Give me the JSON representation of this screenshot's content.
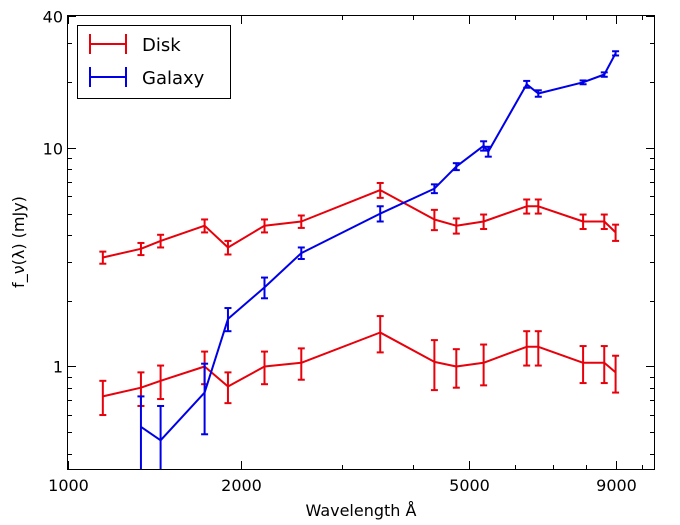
{
  "chart_data": {
    "type": "line",
    "xlabel": "Wavelength Å",
    "ylabel": "f_ν(λ) (mJy)",
    "xscale": "log",
    "yscale": "log",
    "xlim": [
      1000,
      10500
    ],
    "ylim": [
      0.34,
      40
    ],
    "x_ticks": [
      {
        "value": 1000,
        "label": "1000"
      },
      {
        "value": 2000,
        "label": "2000"
      },
      {
        "value": 5000,
        "label": "5000"
      },
      {
        "value": 9000,
        "label": "9000"
      }
    ],
    "y_ticks": [
      {
        "value": 1,
        "label": "1"
      },
      {
        "value": 10,
        "label": "10"
      },
      {
        "value": 40,
        "label": "40"
      }
    ],
    "legend_position": "top-left",
    "grid": false,
    "series": [
      {
        "name": "Disk",
        "color": "#e8000b",
        "segments": [
          [
            {
              "x": 1150,
              "y": 3.15,
              "err": 0.2
            },
            {
              "x": 1340,
              "y": 3.45,
              "err": 0.22
            },
            {
              "x": 1450,
              "y": 3.75,
              "err": 0.25
            },
            {
              "x": 1730,
              "y": 4.4,
              "err": 0.3
            },
            {
              "x": 1900,
              "y": 3.5,
              "err": 0.25
            },
            {
              "x": 2200,
              "y": 4.4,
              "err": 0.3
            },
            {
              "x": 2550,
              "y": 4.6,
              "err": 0.3
            },
            {
              "x": 3500,
              "y": 6.4,
              "err": 0.5
            },
            {
              "x": 4350,
              "y": 4.7,
              "err": 0.5
            },
            {
              "x": 4750,
              "y": 4.4,
              "err": 0.35
            },
            {
              "x": 5300,
              "y": 4.6,
              "err": 0.35
            },
            {
              "x": 6300,
              "y": 5.4,
              "err": 0.4
            },
            {
              "x": 6600,
              "y": 5.4,
              "err": 0.4
            },
            {
              "x": 7900,
              "y": 4.6,
              "err": 0.35
            },
            {
              "x": 8600,
              "y": 4.6,
              "err": 0.35
            },
            {
              "x": 9000,
              "y": 4.1,
              "err": 0.35
            }
          ],
          [
            {
              "x": 1150,
              "y": 0.73,
              "err": 0.13
            },
            {
              "x": 1340,
              "y": 0.8,
              "err": 0.14
            },
            {
              "x": 1450,
              "y": 0.86,
              "err": 0.15
            },
            {
              "x": 1730,
              "y": 1.0,
              "err": 0.17
            },
            {
              "x": 1900,
              "y": 0.81,
              "err": 0.13
            },
            {
              "x": 2200,
              "y": 1.0,
              "err": 0.17
            },
            {
              "x": 2550,
              "y": 1.04,
              "err": 0.17
            },
            {
              "x": 3500,
              "y": 1.43,
              "err": 0.27
            },
            {
              "x": 4350,
              "y": 1.05,
              "err": 0.27
            },
            {
              "x": 4750,
              "y": 1.0,
              "err": 0.2
            },
            {
              "x": 5300,
              "y": 1.04,
              "err": 0.22
            },
            {
              "x": 6300,
              "y": 1.23,
              "err": 0.22
            },
            {
              "x": 6600,
              "y": 1.23,
              "err": 0.22
            },
            {
              "x": 7900,
              "y": 1.04,
              "err": 0.2
            },
            {
              "x": 8600,
              "y": 1.04,
              "err": 0.2
            },
            {
              "x": 9000,
              "y": 0.94,
              "err": 0.18
            }
          ]
        ]
      },
      {
        "name": "Galaxy",
        "color": "#0000e8",
        "segments": [
          [
            {
              "x": 1340,
              "y": 0.53,
              "err": 0.2
            },
            {
              "x": 1450,
              "y": 0.46,
              "err": 0.2
            },
            {
              "x": 1730,
              "y": 0.76,
              "err": 0.27
            },
            {
              "x": 1900,
              "y": 1.65,
              "err": 0.2
            },
            {
              "x": 2200,
              "y": 2.3,
              "err": 0.25
            },
            {
              "x": 2550,
              "y": 3.3,
              "err": 0.2
            },
            {
              "x": 3500,
              "y": 5.0,
              "err": 0.4
            },
            {
              "x": 4350,
              "y": 6.5,
              "err": 0.3
            },
            {
              "x": 4750,
              "y": 8.2,
              "err": 0.3
            },
            {
              "x": 5300,
              "y": 10.2,
              "err": 0.5
            },
            {
              "x": 5400,
              "y": 9.6,
              "err": 0.5
            },
            {
              "x": 6300,
              "y": 19.5,
              "err": 0.7
            },
            {
              "x": 6600,
              "y": 17.7,
              "err": 0.6
            },
            {
              "x": 7900,
              "y": 19.9,
              "err": 0.4
            },
            {
              "x": 8600,
              "y": 21.6,
              "err": 0.5
            },
            {
              "x": 9000,
              "y": 27.0,
              "err": 0.6
            }
          ]
        ]
      }
    ]
  }
}
